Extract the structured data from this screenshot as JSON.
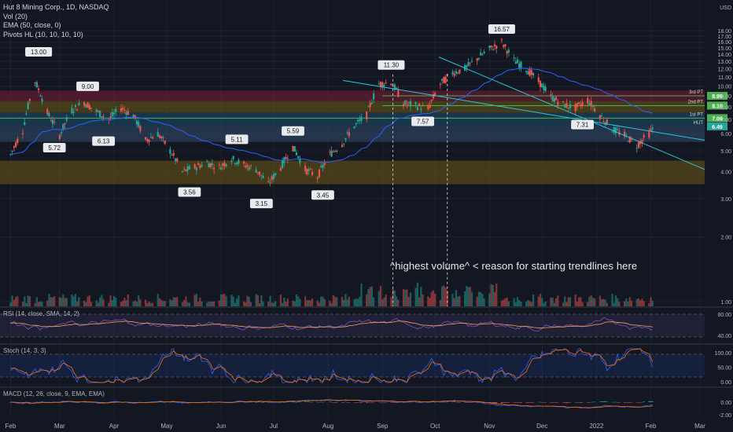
{
  "header": {
    "title": "Hut 8 Mining Corp., 1D, NASDAQ",
    "indicators": [
      "Vol (20)",
      "EMA (50, close, 0)",
      "Pivots HL (10, 10, 10, 10)"
    ]
  },
  "annotation": "^highest volume^ < reason for starting trendlines here",
  "panels": {
    "rsi_label": "RSI (14, close, SMA, 14, 2)",
    "stoch_label": "Stoch (14, 3, 3)",
    "macd_label": "MACD (12, 26, close, 9, EMA, EMA)"
  },
  "chart_data": {
    "type": "candlestick",
    "currency": "USD",
    "y_scale": "log",
    "y_ticks": [
      "18.00",
      "17.00",
      "16.00",
      "15.00",
      "14.00",
      "13.00",
      "12.00",
      "11.00",
      "10.00",
      "9.00",
      "8.00",
      "7.00",
      "6.00",
      "5.00",
      "4.00",
      "3.00",
      "2.00",
      "1.00"
    ],
    "x_ticks": [
      "Feb",
      "Mar",
      "Apr",
      "May",
      "Jun",
      "Jul",
      "Aug",
      "Sep",
      "Oct",
      "Nov",
      "Dec",
      "2022",
      "Feb",
      "Mar"
    ],
    "close_path": [
      [
        "2021-02-01",
        4.8
      ],
      [
        "2021-02-08",
        6.2
      ],
      [
        "2021-02-15",
        10.5
      ],
      [
        "2021-02-22",
        7.5
      ],
      [
        "2021-03-01",
        5.9
      ],
      [
        "2021-03-08",
        7.7
      ],
      [
        "2021-03-15",
        8.4
      ],
      [
        "2021-03-22",
        7.6
      ],
      [
        "2021-03-29",
        7.0
      ],
      [
        "2021-04-05",
        7.9
      ],
      [
        "2021-04-12",
        7.3
      ],
      [
        "2021-04-19",
        5.6
      ],
      [
        "2021-04-26",
        6.0
      ],
      [
        "2021-05-03",
        5.0
      ],
      [
        "2021-05-10",
        4.0
      ],
      [
        "2021-05-17",
        4.2
      ],
      [
        "2021-05-24",
        4.4
      ],
      [
        "2021-05-31",
        4.2
      ],
      [
        "2021-06-07",
        4.6
      ],
      [
        "2021-06-14",
        4.3
      ],
      [
        "2021-06-21",
        4.1
      ],
      [
        "2021-06-28",
        3.5
      ],
      [
        "2021-07-05",
        4.2
      ],
      [
        "2021-07-12",
        5.2
      ],
      [
        "2021-07-19",
        4.1
      ],
      [
        "2021-07-26",
        3.8
      ],
      [
        "2021-08-02",
        4.8
      ],
      [
        "2021-08-09",
        5.4
      ],
      [
        "2021-08-16",
        6.5
      ],
      [
        "2021-08-23",
        7.3
      ],
      [
        "2021-08-30",
        10.2
      ],
      [
        "2021-09-06",
        10.4
      ],
      [
        "2021-09-13",
        8.3
      ],
      [
        "2021-09-20",
        8.1
      ],
      [
        "2021-09-27",
        7.8
      ],
      [
        "2021-10-04",
        10.2
      ],
      [
        "2021-10-11",
        11.5
      ],
      [
        "2021-10-18",
        12.0
      ],
      [
        "2021-10-25",
        13.4
      ],
      [
        "2021-11-01",
        14.8
      ],
      [
        "2021-11-08",
        15.9
      ],
      [
        "2021-11-15",
        13.1
      ],
      [
        "2021-11-22",
        12.0
      ],
      [
        "2021-11-29",
        10.5
      ],
      [
        "2021-12-06",
        8.9
      ],
      [
        "2021-12-13",
        8.2
      ],
      [
        "2021-12-20",
        7.9
      ],
      [
        "2021-12-27",
        8.6
      ],
      [
        "2022-01-03",
        7.3
      ],
      [
        "2022-01-10",
        6.3
      ],
      [
        "2022-01-17",
        5.9
      ],
      [
        "2022-01-24",
        5.3
      ],
      [
        "2022-01-31",
        6.0
      ],
      [
        "2022-02-03",
        6.49
      ]
    ],
    "price_labels": [
      {
        "text": "13.00",
        "date": "2021-02-17",
        "value": 13.0,
        "pos": "above"
      },
      {
        "text": "5.72",
        "date": "2021-02-26",
        "value": 5.72,
        "pos": "below"
      },
      {
        "text": "9.00",
        "date": "2021-03-17",
        "value": 9.0,
        "pos": "above"
      },
      {
        "text": "6.13",
        "date": "2021-03-26",
        "value": 6.13,
        "pos": "below"
      },
      {
        "text": "3.56",
        "date": "2021-05-14",
        "value": 3.56,
        "pos": "below"
      },
      {
        "text": "5.11",
        "date": "2021-06-10",
        "value": 5.11,
        "pos": "above"
      },
      {
        "text": "3.15",
        "date": "2021-06-24",
        "value": 3.15,
        "pos": "below"
      },
      {
        "text": "5.59",
        "date": "2021-07-12",
        "value": 5.59,
        "pos": "above"
      },
      {
        "text": "3.45",
        "date": "2021-07-29",
        "value": 3.45,
        "pos": "below"
      },
      {
        "text": "11.30",
        "date": "2021-09-06",
        "value": 11.3,
        "pos": "above"
      },
      {
        "text": "7.57",
        "date": "2021-09-24",
        "value": 7.57,
        "pos": "below"
      },
      {
        "text": "16.57",
        "date": "2021-11-08",
        "value": 16.57,
        "pos": "above"
      },
      {
        "text": "7.31",
        "date": "2021-12-24",
        "value": 7.31,
        "pos": "below"
      }
    ],
    "levels": [
      {
        "label": "3rd PT",
        "value": 8.99,
        "color": "#4caf50"
      },
      {
        "label": "2nd PT",
        "value": 8.1,
        "color": "#4caf50"
      },
      {
        "label": "1st PT",
        "value": 7.09,
        "color": "#4caf50"
      },
      {
        "label": "HUT",
        "value": 6.49,
        "color": "#26a69a"
      }
    ],
    "zones": [
      {
        "from": 8.5,
        "to": 9.5,
        "color": "#7a1f36"
      },
      {
        "from": 7.5,
        "to": 8.5,
        "color": "#6b5a14"
      },
      {
        "from": 6.5,
        "to": 7.5,
        "color": "#1e4e6e"
      },
      {
        "from": 5.5,
        "to": 6.5,
        "color": "#334d6e"
      },
      {
        "from": 3.5,
        "to": 4.5,
        "color": "#6b5a14"
      }
    ],
    "rsi": {
      "ticks": [
        "80.00",
        "40.00"
      ]
    },
    "stoch": {
      "ticks": [
        "100.00",
        "50.00",
        "0.00"
      ]
    },
    "macd": {
      "ticks": [
        "0.00",
        "-2.00"
      ]
    },
    "colors": {
      "up": "#26a69a",
      "down": "#ef5350",
      "ema": "#2962ff",
      "background": "#131722",
      "grid": "#2a2e39"
    }
  }
}
